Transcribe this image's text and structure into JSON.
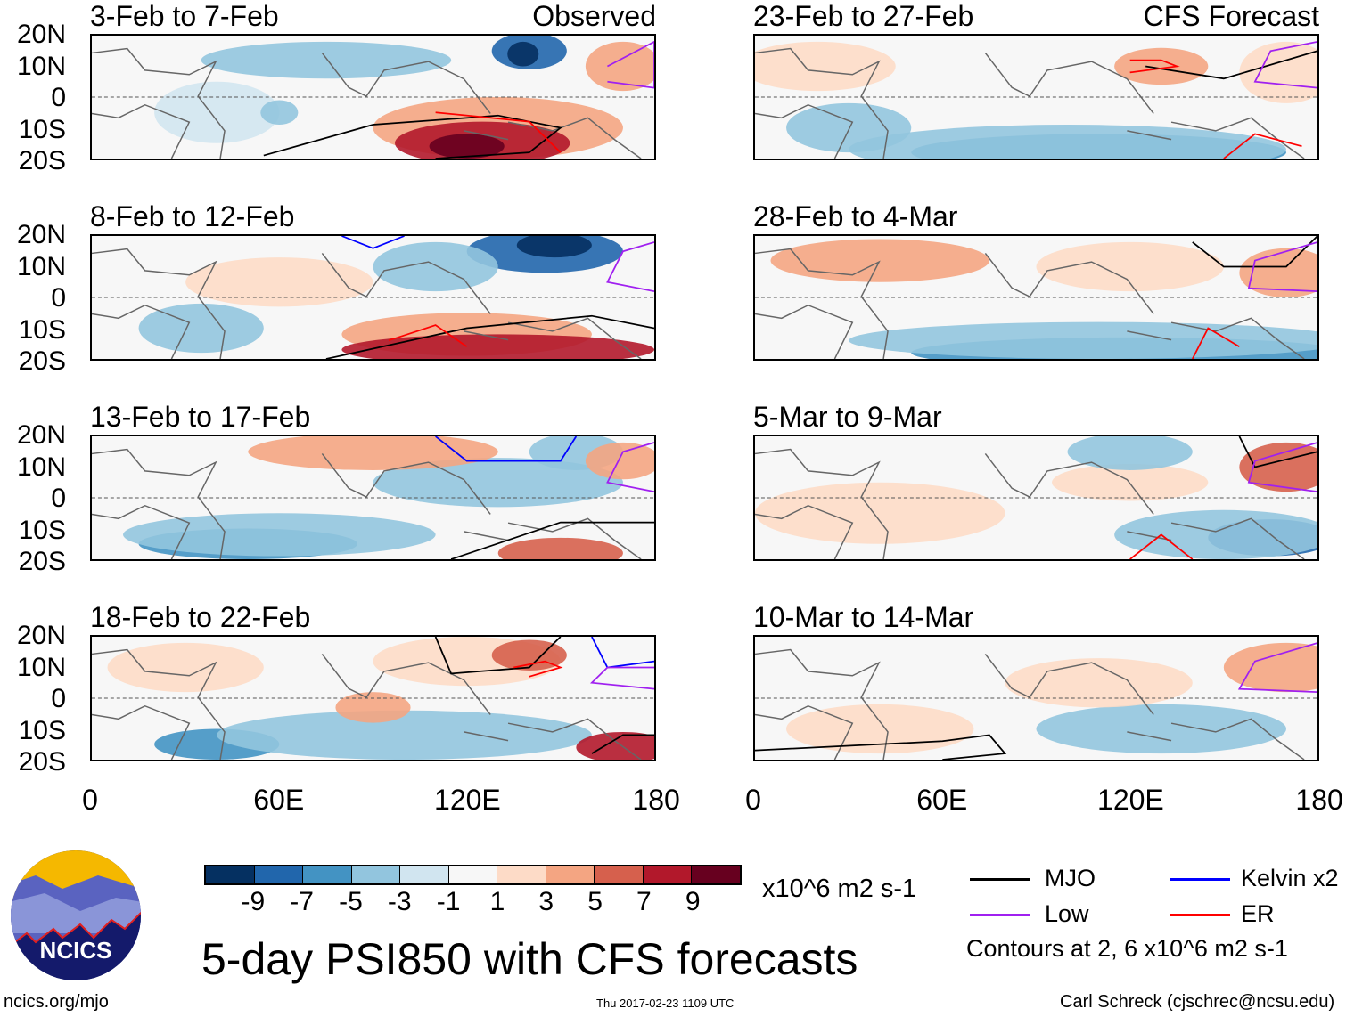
{
  "panels": [
    {
      "title": "3-Feb to 7-Feb",
      "tag": "Observed"
    },
    {
      "title": "23-Feb to 27-Feb",
      "tag": "CFS Forecast"
    },
    {
      "title": "8-Feb to 12-Feb"
    },
    {
      "title": "28-Feb to 4-Mar"
    },
    {
      "title": "13-Feb to 17-Feb"
    },
    {
      "title": "5-Mar to 9-Mar"
    },
    {
      "title": "18-Feb to 22-Feb"
    },
    {
      "title": "10-Mar to 14-Mar"
    }
  ],
  "lat_labels": [
    "20N",
    "10N",
    "0",
    "10S",
    "20S"
  ],
  "lon_labels": [
    "0",
    "60E",
    "120E",
    "180"
  ],
  "colorbar": {
    "colors": [
      "#053061",
      "#2166ac",
      "#4393c3",
      "#92c5de",
      "#d1e5f0",
      "#f7f7f7",
      "#fddbc7",
      "#f4a582",
      "#d6604d",
      "#b2182b",
      "#67001f"
    ],
    "labels": [
      "-9",
      "-7",
      "-5",
      "-3",
      "-1",
      "1",
      "3",
      "5",
      "7",
      "9"
    ],
    "units": "x10^6 m2 s-1"
  },
  "legend": {
    "items": [
      {
        "label": "MJO",
        "color": "#000000"
      },
      {
        "label": "Kelvin x2",
        "color": "#0000ff"
      },
      {
        "label": "Low",
        "color": "#a020f0"
      },
      {
        "label": "ER",
        "color": "#ff0000"
      }
    ],
    "note": "Contours at 2, 6 x10^6 m2 s-1"
  },
  "logo_text": "NCICS",
  "main_title": "5-day PSI850 with CFS forecasts",
  "url": "ncics.org/mjo",
  "timestamp": "Thu 2017-02-23 1109 UTC",
  "credit": "Carl Schreck (cjschrec@ncsu.edu)"
}
